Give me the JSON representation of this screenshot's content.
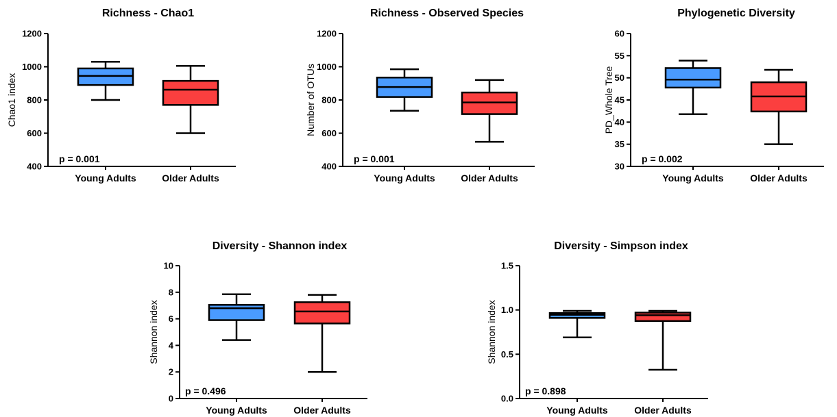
{
  "chart_data": [
    {
      "type": "box",
      "title": "Richness - Chao1",
      "ylabel": "Chao1 index",
      "ylim": [
        400,
        1200
      ],
      "yticks": [
        "400",
        "600",
        "800",
        "1000",
        "1200"
      ],
      "categories": [
        "Young Adults",
        "Older Adults"
      ],
      "boxes": [
        {
          "min": 800,
          "q1": 890,
          "median": 945,
          "q3": 990,
          "max": 1030
        },
        {
          "min": 600,
          "q1": 770,
          "median": 862,
          "q3": 915,
          "max": 1005
        }
      ],
      "annotation": "p = 0.001"
    },
    {
      "type": "box",
      "title": "Richness - Observed Species",
      "ylabel": "Number of OTUs",
      "ylim": [
        400,
        1200
      ],
      "yticks": [
        "400",
        "600",
        "800",
        "1000",
        "1200"
      ],
      "categories": [
        "Young Adults",
        "Older Adults"
      ],
      "boxes": [
        {
          "min": 735,
          "q1": 818,
          "median": 878,
          "q3": 935,
          "max": 985
        },
        {
          "min": 548,
          "q1": 715,
          "median": 785,
          "q3": 845,
          "max": 920
        }
      ],
      "annotation": "p = 0.001"
    },
    {
      "type": "box",
      "title": "Phylogenetic Diversity",
      "ylabel": "PD_Whole Tree",
      "ylim": [
        30,
        60
      ],
      "yticks": [
        "30",
        "35",
        "40",
        "45",
        "50",
        "55",
        "60"
      ],
      "categories": [
        "Young Adults",
        "Older Adults"
      ],
      "boxes": [
        {
          "min": 41.8,
          "q1": 47.8,
          "median": 49.6,
          "q3": 52.2,
          "max": 53.9
        },
        {
          "min": 35.0,
          "q1": 42.4,
          "median": 45.8,
          "q3": 49.0,
          "max": 51.8
        }
      ],
      "annotation": "p = 0.002"
    },
    {
      "type": "box",
      "title": "Diversity - Shannon index",
      "ylabel": "Shannon index",
      "ylim": [
        0,
        10
      ],
      "yticks": [
        "0",
        "2",
        "4",
        "6",
        "8",
        "10"
      ],
      "categories": [
        "Young Adults",
        "Older Adults"
      ],
      "boxes": [
        {
          "min": 4.4,
          "q1": 5.9,
          "median": 6.8,
          "q3": 7.05,
          "max": 7.85
        },
        {
          "min": 2.0,
          "q1": 5.65,
          "median": 6.55,
          "q3": 7.25,
          "max": 7.8
        }
      ],
      "annotation": "p = 0.496"
    },
    {
      "type": "box",
      "title": "Diversity - Simpson index",
      "ylabel": "Shannon index",
      "ylim": [
        0,
        1.5
      ],
      "yticks": [
        "0.0",
        "0.5",
        "1.0",
        "1.5"
      ],
      "categories": [
        "Young Adults",
        "Older Adults"
      ],
      "boxes": [
        {
          "min": 0.69,
          "q1": 0.91,
          "median": 0.945,
          "q3": 0.965,
          "max": 0.99
        },
        {
          "min": 0.325,
          "q1": 0.875,
          "median": 0.94,
          "q3": 0.97,
          "max": 0.99
        }
      ],
      "annotation": "p = 0.898"
    }
  ],
  "colors": {
    "young": "#4a9bff",
    "older": "#fb3f3f",
    "stroke": "#000000"
  }
}
